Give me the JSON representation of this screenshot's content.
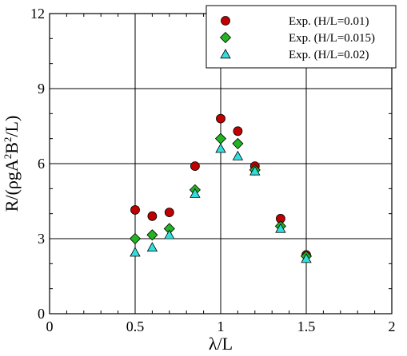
{
  "chart_data": {
    "type": "scatter",
    "xlabel": "λ/L",
    "ylabel": {
      "base": "R/(ρgA",
      "sup": "2",
      "rest": "B",
      "sup2": "2",
      "end": "/L)"
    },
    "xlim": [
      0,
      2
    ],
    "ylim": [
      0,
      12
    ],
    "xticks": [
      0,
      0.5,
      1,
      1.5,
      2
    ],
    "xtick_labels": [
      "0",
      "0.5",
      "1",
      "1.5",
      "2"
    ],
    "yticks": [
      0,
      3,
      6,
      9,
      12
    ],
    "ytick_labels": [
      "0",
      "3",
      "6",
      "9",
      "12"
    ],
    "grid": "major gridlines at 0.5, 1, 1.5 (x) and 3, 6, 9 (y)",
    "legend_position": "top-right",
    "series": [
      {
        "name": "Exp. (H/L=0.01)",
        "marker": "circle",
        "color": "#c00000",
        "x": [
          0.5,
          0.6,
          0.7,
          0.85,
          1.0,
          1.1,
          1.2,
          1.35,
          1.5
        ],
        "y": [
          4.15,
          3.9,
          4.05,
          5.9,
          7.8,
          7.3,
          5.9,
          3.8,
          2.35
        ]
      },
      {
        "name": "Exp. (H/L=0.015)",
        "marker": "diamond",
        "color": "#22b422",
        "x": [
          0.5,
          0.6,
          0.7,
          0.85,
          1.0,
          1.1,
          1.2,
          1.35,
          1.5
        ],
        "y": [
          3.0,
          3.15,
          3.4,
          4.95,
          7.0,
          6.8,
          5.75,
          3.5,
          2.3
        ]
      },
      {
        "name": "Exp. (H/L=0.02)",
        "marker": "triangle",
        "color": "#33dddd",
        "x": [
          0.5,
          0.6,
          0.7,
          0.85,
          1.0,
          1.1,
          1.2,
          1.35,
          1.5
        ],
        "y": [
          2.45,
          2.65,
          3.15,
          4.8,
          6.6,
          6.3,
          5.7,
          3.4,
          2.2
        ]
      }
    ]
  }
}
